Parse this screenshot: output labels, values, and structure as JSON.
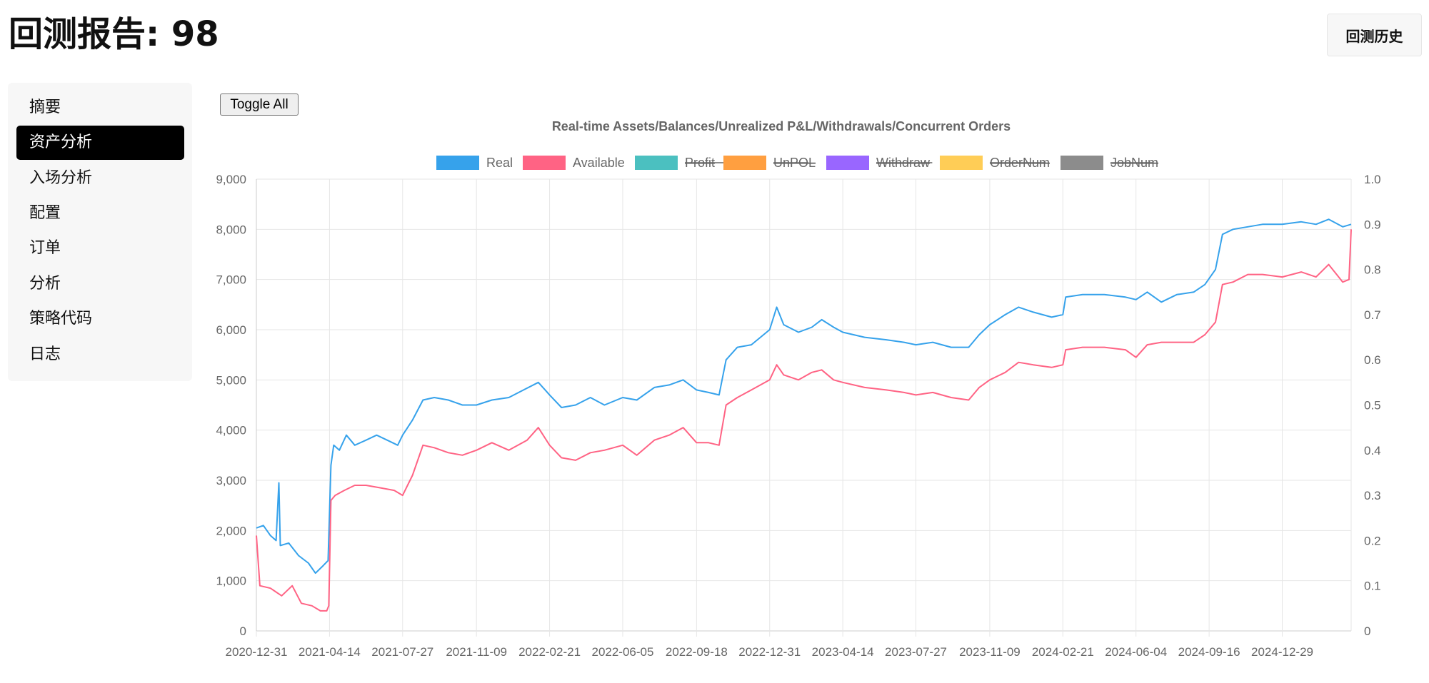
{
  "header": {
    "title": "回测报告: 98",
    "history_button": "回测历史"
  },
  "sidebar": {
    "items": [
      {
        "label": "摘要",
        "active": false
      },
      {
        "label": "资产分析",
        "active": true
      },
      {
        "label": "入场分析",
        "active": false
      },
      {
        "label": "配置",
        "active": false
      },
      {
        "label": "订单",
        "active": false
      },
      {
        "label": "分析",
        "active": false
      },
      {
        "label": "策略代码",
        "active": false
      },
      {
        "label": "日志",
        "active": false
      }
    ]
  },
  "toolbar": {
    "toggle_all_label": "Toggle All"
  },
  "chart_data": {
    "type": "line",
    "title": "Real-time Assets/Balances/Unrealized P&L/Withdrawals/Concurrent Orders",
    "legend_position": "top",
    "grid": true,
    "x_ticks": [
      "2020-12-31",
      "2021-04-14",
      "2021-07-27",
      "2021-11-09",
      "2022-02-21",
      "2022-06-05",
      "2022-09-18",
      "2022-12-31",
      "2023-04-14",
      "2023-07-27",
      "2023-11-09",
      "2024-02-21",
      "2024-06-04",
      "2024-09-16",
      "2024-12-29"
    ],
    "x_range": [
      "2020-12-31",
      "2025-04-06"
    ],
    "y_left": {
      "min": 0,
      "max": 9000,
      "ticks": [
        "0",
        "1,000",
        "2,000",
        "3,000",
        "4,000",
        "5,000",
        "6,000",
        "7,000",
        "8,000",
        "9,000"
      ]
    },
    "y_right": {
      "min": 0,
      "max": 1.0,
      "ticks": [
        "0",
        "0.1",
        "0.2",
        "0.3",
        "0.4",
        "0.5",
        "0.6",
        "0.7",
        "0.8",
        "0.9",
        "1.0"
      ]
    },
    "series": [
      {
        "name": "Real",
        "color": "#36a2eb",
        "hidden": false,
        "points": [
          [
            "2020-12-31",
            2050
          ],
          [
            "2021-01-10",
            2100
          ],
          [
            "2021-01-20",
            1900
          ],
          [
            "2021-01-28",
            1800
          ],
          [
            "2021-02-01",
            2950
          ],
          [
            "2021-02-03",
            1700
          ],
          [
            "2021-02-15",
            1750
          ],
          [
            "2021-03-01",
            1500
          ],
          [
            "2021-03-15",
            1350
          ],
          [
            "2021-03-25",
            1150
          ],
          [
            "2021-04-05",
            1300
          ],
          [
            "2021-04-12",
            1400
          ],
          [
            "2021-04-16",
            3300
          ],
          [
            "2021-04-20",
            3700
          ],
          [
            "2021-04-28",
            3600
          ],
          [
            "2021-05-08",
            3900
          ],
          [
            "2021-05-20",
            3700
          ],
          [
            "2021-06-05",
            3800
          ],
          [
            "2021-06-20",
            3900
          ],
          [
            "2021-07-05",
            3800
          ],
          [
            "2021-07-20",
            3700
          ],
          [
            "2021-07-27",
            3900
          ],
          [
            "2021-08-10",
            4200
          ],
          [
            "2021-08-25",
            4600
          ],
          [
            "2021-09-10",
            4650
          ],
          [
            "2021-09-30",
            4600
          ],
          [
            "2021-10-20",
            4500
          ],
          [
            "2021-11-09",
            4500
          ],
          [
            "2021-12-01",
            4600
          ],
          [
            "2021-12-25",
            4650
          ],
          [
            "2022-01-15",
            4800
          ],
          [
            "2022-02-05",
            4950
          ],
          [
            "2022-02-21",
            4700
          ],
          [
            "2022-03-10",
            4450
          ],
          [
            "2022-03-30",
            4500
          ],
          [
            "2022-04-20",
            4650
          ],
          [
            "2022-05-10",
            4500
          ],
          [
            "2022-06-05",
            4650
          ],
          [
            "2022-06-25",
            4600
          ],
          [
            "2022-07-20",
            4850
          ],
          [
            "2022-08-10",
            4900
          ],
          [
            "2022-08-30",
            5000
          ],
          [
            "2022-09-18",
            4800
          ],
          [
            "2022-10-05",
            4750
          ],
          [
            "2022-10-20",
            4700
          ],
          [
            "2022-10-30",
            5400
          ],
          [
            "2022-11-15",
            5650
          ],
          [
            "2022-12-05",
            5700
          ],
          [
            "2022-12-31",
            6000
          ],
          [
            "2023-01-10",
            6450
          ],
          [
            "2023-01-20",
            6100
          ],
          [
            "2023-02-10",
            5950
          ],
          [
            "2023-03-01",
            6050
          ],
          [
            "2023-03-15",
            6200
          ],
          [
            "2023-04-01",
            6050
          ],
          [
            "2023-04-14",
            5950
          ],
          [
            "2023-05-15",
            5850
          ],
          [
            "2023-06-15",
            5800
          ],
          [
            "2023-07-10",
            5750
          ],
          [
            "2023-07-27",
            5700
          ],
          [
            "2023-08-20",
            5750
          ],
          [
            "2023-09-15",
            5650
          ],
          [
            "2023-10-10",
            5650
          ],
          [
            "2023-10-25",
            5900
          ],
          [
            "2023-11-09",
            6100
          ],
          [
            "2023-12-01",
            6300
          ],
          [
            "2023-12-20",
            6450
          ],
          [
            "2024-01-10",
            6350
          ],
          [
            "2024-02-05",
            6250
          ],
          [
            "2024-02-21",
            6300
          ],
          [
            "2024-02-25",
            6650
          ],
          [
            "2024-03-20",
            6700
          ],
          [
            "2024-04-20",
            6700
          ],
          [
            "2024-05-20",
            6650
          ],
          [
            "2024-06-04",
            6600
          ],
          [
            "2024-06-20",
            6750
          ],
          [
            "2024-07-10",
            6550
          ],
          [
            "2024-08-01",
            6700
          ],
          [
            "2024-08-25",
            6750
          ],
          [
            "2024-09-10",
            6900
          ],
          [
            "2024-09-25",
            7200
          ],
          [
            "2024-10-05",
            7900
          ],
          [
            "2024-10-20",
            8000
          ],
          [
            "2024-11-10",
            8050
          ],
          [
            "2024-12-01",
            8100
          ],
          [
            "2024-12-29",
            8100
          ],
          [
            "2025-01-25",
            8150
          ],
          [
            "2025-02-15",
            8100
          ],
          [
            "2025-03-05",
            8200
          ],
          [
            "2025-03-25",
            8050
          ],
          [
            "2025-04-06",
            8100
          ]
        ]
      },
      {
        "name": "Available",
        "color": "#ff6384",
        "hidden": false,
        "points": [
          [
            "2020-12-31",
            1900
          ],
          [
            "2021-01-05",
            900
          ],
          [
            "2021-01-20",
            850
          ],
          [
            "2021-02-05",
            700
          ],
          [
            "2021-02-20",
            900
          ],
          [
            "2021-03-05",
            550
          ],
          [
            "2021-03-20",
            500
          ],
          [
            "2021-04-01",
            400
          ],
          [
            "2021-04-10",
            400
          ],
          [
            "2021-04-13",
            500
          ],
          [
            "2021-04-16",
            2600
          ],
          [
            "2021-04-22",
            2700
          ],
          [
            "2021-05-05",
            2800
          ],
          [
            "2021-05-20",
            2900
          ],
          [
            "2021-06-05",
            2900
          ],
          [
            "2021-06-25",
            2850
          ],
          [
            "2021-07-15",
            2800
          ],
          [
            "2021-07-27",
            2700
          ],
          [
            "2021-08-10",
            3100
          ],
          [
            "2021-08-25",
            3700
          ],
          [
            "2021-09-10",
            3650
          ],
          [
            "2021-09-30",
            3550
          ],
          [
            "2021-10-20",
            3500
          ],
          [
            "2021-11-09",
            3600
          ],
          [
            "2021-12-01",
            3750
          ],
          [
            "2021-12-25",
            3600
          ],
          [
            "2022-01-20",
            3800
          ],
          [
            "2022-02-05",
            4050
          ],
          [
            "2022-02-21",
            3700
          ],
          [
            "2022-03-10",
            3450
          ],
          [
            "2022-03-30",
            3400
          ],
          [
            "2022-04-20",
            3550
          ],
          [
            "2022-05-10",
            3600
          ],
          [
            "2022-06-05",
            3700
          ],
          [
            "2022-06-25",
            3500
          ],
          [
            "2022-07-20",
            3800
          ],
          [
            "2022-08-10",
            3900
          ],
          [
            "2022-08-30",
            4050
          ],
          [
            "2022-09-18",
            3750
          ],
          [
            "2022-10-05",
            3750
          ],
          [
            "2022-10-20",
            3700
          ],
          [
            "2022-10-30",
            4500
          ],
          [
            "2022-11-15",
            4650
          ],
          [
            "2022-12-05",
            4800
          ],
          [
            "2022-12-31",
            5000
          ],
          [
            "2023-01-10",
            5300
          ],
          [
            "2023-01-20",
            5100
          ],
          [
            "2023-02-10",
            5000
          ],
          [
            "2023-03-01",
            5150
          ],
          [
            "2023-03-15",
            5200
          ],
          [
            "2023-04-01",
            5000
          ],
          [
            "2023-04-14",
            4950
          ],
          [
            "2023-05-15",
            4850
          ],
          [
            "2023-06-15",
            4800
          ],
          [
            "2023-07-10",
            4750
          ],
          [
            "2023-07-27",
            4700
          ],
          [
            "2023-08-20",
            4750
          ],
          [
            "2023-09-15",
            4650
          ],
          [
            "2023-10-10",
            4600
          ],
          [
            "2023-10-25",
            4850
          ],
          [
            "2023-11-09",
            5000
          ],
          [
            "2023-12-01",
            5150
          ],
          [
            "2023-12-20",
            5350
          ],
          [
            "2024-01-10",
            5300
          ],
          [
            "2024-02-05",
            5250
          ],
          [
            "2024-02-21",
            5300
          ],
          [
            "2024-02-25",
            5600
          ],
          [
            "2024-03-20",
            5650
          ],
          [
            "2024-04-20",
            5650
          ],
          [
            "2024-05-20",
            5600
          ],
          [
            "2024-06-04",
            5450
          ],
          [
            "2024-06-20",
            5700
          ],
          [
            "2024-07-10",
            5750
          ],
          [
            "2024-08-01",
            5750
          ],
          [
            "2024-08-25",
            5750
          ],
          [
            "2024-09-10",
            5900
          ],
          [
            "2024-09-25",
            6150
          ],
          [
            "2024-10-05",
            6900
          ],
          [
            "2024-10-20",
            6950
          ],
          [
            "2024-11-10",
            7100
          ],
          [
            "2024-12-01",
            7100
          ],
          [
            "2024-12-29",
            7050
          ],
          [
            "2025-01-25",
            7150
          ],
          [
            "2025-02-15",
            7050
          ],
          [
            "2025-03-05",
            7300
          ],
          [
            "2025-03-25",
            6950
          ],
          [
            "2025-04-03",
            7000
          ],
          [
            "2025-04-06",
            8000
          ]
        ]
      },
      {
        "name": "Profit",
        "color": "#4bc0c0",
        "hidden": true,
        "points": []
      },
      {
        "name": "UnPOL",
        "color": "#ff9f40",
        "hidden": true,
        "points": []
      },
      {
        "name": "Withdraw",
        "color": "#9966ff",
        "hidden": true,
        "points": []
      },
      {
        "name": "OrderNum",
        "color": "#ffcd56",
        "hidden": true,
        "points": []
      },
      {
        "name": "JobNum",
        "color": "#8c8c8c",
        "hidden": true,
        "points": []
      }
    ]
  }
}
